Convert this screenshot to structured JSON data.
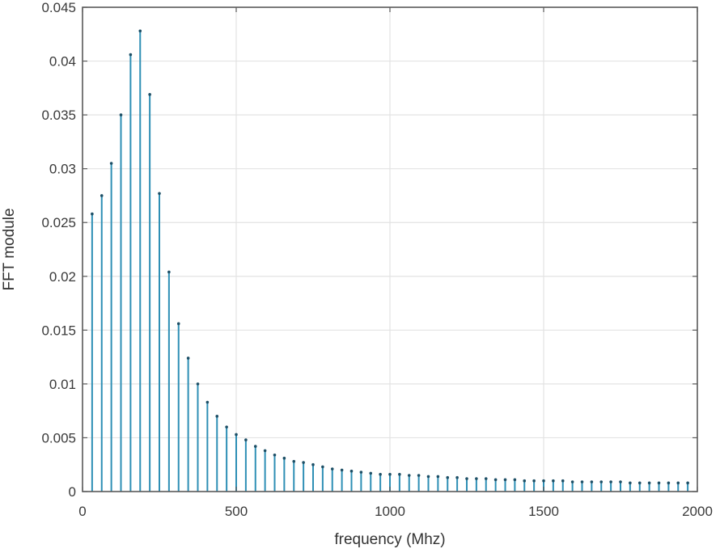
{
  "chart_data": {
    "type": "stem",
    "title": "",
    "xlabel": "frequency (Mhz)",
    "ylabel": "FFT module",
    "xlim": [
      0,
      2000
    ],
    "ylim": [
      0,
      0.045
    ],
    "grid": true,
    "legend": null,
    "xticks": [
      0,
      500,
      1000,
      1500,
      2000
    ],
    "xtick_labels": [
      "0",
      "500",
      "1000",
      "1500",
      "2000"
    ],
    "yticks": [
      0,
      0.005,
      0.01,
      0.015,
      0.02,
      0.025,
      0.03,
      0.035,
      0.04,
      0.045
    ],
    "ytick_labels": [
      "0",
      "0.005",
      "0.01",
      "0.015",
      "0.02",
      "0.025",
      "0.03",
      "0.035",
      "0.04",
      "0.045"
    ],
    "series": [
      {
        "name": "FFT module",
        "color": "#2e8fb5",
        "x_step": 31.25,
        "x": [
          31.25,
          62.5,
          93.75,
          125,
          156.25,
          187.5,
          218.75,
          250,
          281.25,
          312.5,
          343.75,
          375,
          406.25,
          437.5,
          468.75,
          500,
          531.25,
          562.5,
          593.75,
          625,
          656.25,
          687.5,
          718.75,
          750,
          781.25,
          812.5,
          843.75,
          875,
          906.25,
          937.5,
          968.75,
          1000,
          1031.25,
          1062.5,
          1093.75,
          1125,
          1156.25,
          1187.5,
          1218.75,
          1250,
          1281.25,
          1312.5,
          1343.75,
          1375,
          1406.25,
          1437.5,
          1468.75,
          1500,
          1531.25,
          1562.5,
          1593.75,
          1625,
          1656.25,
          1687.5,
          1718.75,
          1750,
          1781.25,
          1812.5,
          1843.75,
          1875,
          1906.25,
          1937.5,
          1968.75
        ],
        "values": [
          0.0258,
          0.0275,
          0.0305,
          0.035,
          0.0406,
          0.0428,
          0.0369,
          0.0277,
          0.0204,
          0.0156,
          0.0124,
          0.01,
          0.0083,
          0.007,
          0.006,
          0.0053,
          0.0048,
          0.0042,
          0.0038,
          0.0034,
          0.0031,
          0.0028,
          0.0027,
          0.0025,
          0.0023,
          0.0021,
          0.002,
          0.0019,
          0.0018,
          0.0017,
          0.0016,
          0.0016,
          0.0016,
          0.0015,
          0.0015,
          0.0014,
          0.0014,
          0.0013,
          0.0013,
          0.0012,
          0.0012,
          0.0012,
          0.0011,
          0.0011,
          0.0011,
          0.001,
          0.001,
          0.001,
          0.001,
          0.001,
          0.0009,
          0.0009,
          0.0009,
          0.0009,
          0.0009,
          0.0009,
          0.0008,
          0.0008,
          0.0008,
          0.0008,
          0.0008,
          0.0008,
          0.0008
        ]
      }
    ]
  },
  "colors": {
    "stem": "#2e8fb5",
    "marker": "#1d4f66",
    "grid": "#e3e3e3",
    "axis": "#5a5a5a",
    "background": "#ffffff"
  }
}
